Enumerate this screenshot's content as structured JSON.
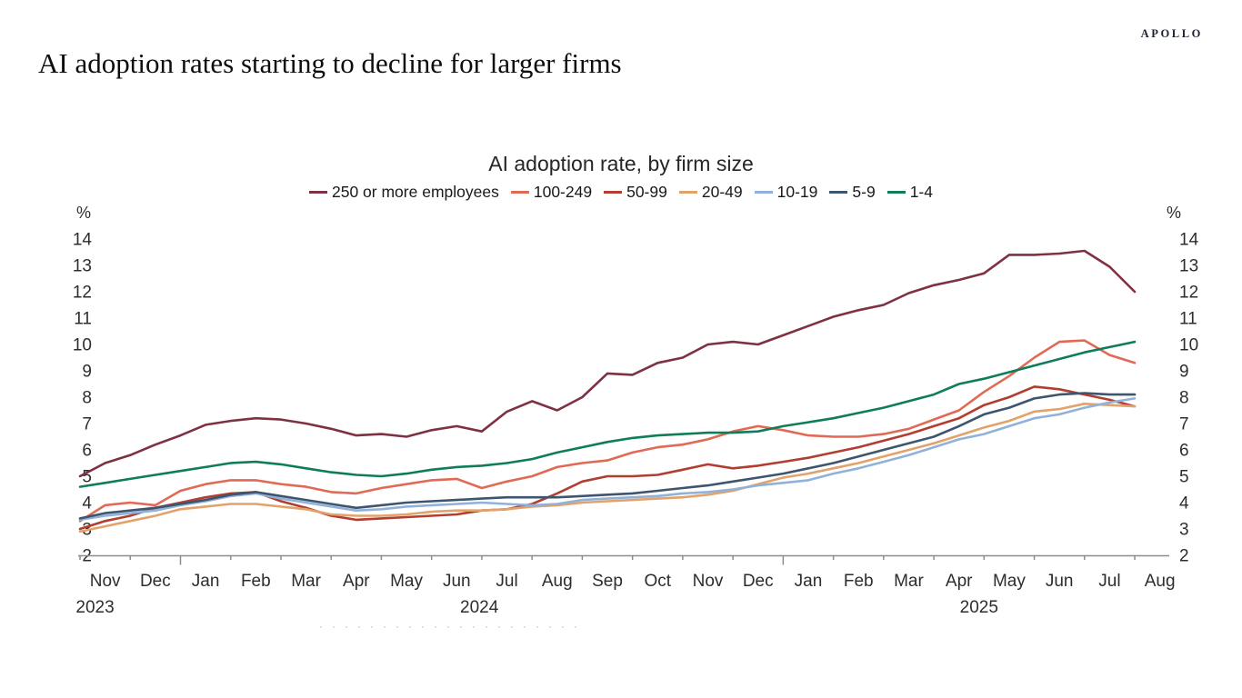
{
  "page": {
    "logo": "APOLLO",
    "title": "AI adoption rates starting to decline for larger firms"
  },
  "chart_data": {
    "type": "line",
    "title": "AI adoption rate, by firm size",
    "y_unit": "%",
    "ylim": [
      2,
      14
    ],
    "y_ticks": [
      2,
      3,
      4,
      5,
      6,
      7,
      8,
      9,
      10,
      11,
      12,
      13,
      14
    ],
    "grid": false,
    "legend_position": "top-center",
    "sampling": "biweekly survey periods, Nov 2023 - early Aug 2025",
    "x_axis": {
      "months": [
        "Nov",
        "Dec",
        "Jan",
        "Feb",
        "Mar",
        "Apr",
        "May",
        "Jun",
        "Jul",
        "Aug",
        "Sep",
        "Oct",
        "Nov",
        "Dec",
        "Jan",
        "Feb",
        "Mar",
        "Apr",
        "May",
        "Jun",
        "Jul",
        "Aug"
      ],
      "years": [
        {
          "label": "2023",
          "month_pos": -0.2
        },
        {
          "label": "2024",
          "month_pos": 7.45
        },
        {
          "label": "2025",
          "month_pos": 17.4
        }
      ]
    },
    "series": [
      {
        "name": "250 or more employees",
        "color": "#7e3142",
        "values": [
          5.0,
          5.5,
          5.8,
          6.2,
          6.55,
          6.95,
          7.1,
          7.2,
          7.15,
          7.0,
          6.8,
          6.55,
          6.6,
          6.5,
          6.75,
          6.9,
          6.7,
          7.45,
          7.85,
          7.5,
          8.0,
          8.9,
          8.85,
          9.3,
          9.5,
          10.0,
          10.1,
          10.0,
          10.35,
          10.7,
          11.05,
          11.3,
          11.5,
          11.95,
          12.25,
          12.45,
          12.7,
          13.4,
          13.4,
          13.45,
          13.55,
          12.95,
          12.0
        ]
      },
      {
        "name": "100-249",
        "color": "#e06a55",
        "values": [
          3.3,
          3.9,
          4.0,
          3.9,
          4.45,
          4.7,
          4.85,
          4.85,
          4.7,
          4.6,
          4.4,
          4.35,
          4.55,
          4.7,
          4.85,
          4.9,
          4.55,
          4.8,
          5.0,
          5.35,
          5.5,
          5.6,
          5.9,
          6.1,
          6.2,
          6.4,
          6.7,
          6.9,
          6.75,
          6.55,
          6.5,
          6.5,
          6.6,
          6.8,
          7.15,
          7.5,
          8.2,
          8.8,
          9.5,
          10.1,
          10.15,
          9.6,
          9.3
        ]
      },
      {
        "name": "50-99",
        "color": "#b23d31",
        "values": [
          3.0,
          3.3,
          3.5,
          3.8,
          4.0,
          4.2,
          4.35,
          4.4,
          4.05,
          3.8,
          3.5,
          3.35,
          3.4,
          3.45,
          3.5,
          3.55,
          3.7,
          3.75,
          3.95,
          4.35,
          4.8,
          5.0,
          5.0,
          5.05,
          5.25,
          5.45,
          5.3,
          5.4,
          5.55,
          5.7,
          5.9,
          6.1,
          6.35,
          6.6,
          6.9,
          7.2,
          7.7,
          8.0,
          8.4,
          8.3,
          8.1,
          7.9,
          7.65
        ]
      },
      {
        "name": "20-49",
        "color": "#e3a269",
        "values": [
          2.9,
          3.1,
          3.3,
          3.5,
          3.75,
          3.85,
          3.95,
          3.95,
          3.85,
          3.75,
          3.55,
          3.5,
          3.5,
          3.55,
          3.65,
          3.7,
          3.7,
          3.75,
          3.85,
          3.9,
          4.0,
          4.05,
          4.1,
          4.15,
          4.2,
          4.3,
          4.45,
          4.7,
          4.95,
          5.1,
          5.3,
          5.5,
          5.75,
          6.0,
          6.25,
          6.55,
          6.85,
          7.1,
          7.45,
          7.55,
          7.75,
          7.7,
          7.65
        ]
      },
      {
        "name": "10-19",
        "color": "#90b2d9",
        "values": [
          3.35,
          3.5,
          3.6,
          3.7,
          3.9,
          4.05,
          4.25,
          4.35,
          4.15,
          4.0,
          3.85,
          3.7,
          3.75,
          3.85,
          3.9,
          3.95,
          4.0,
          3.95,
          3.9,
          3.95,
          4.1,
          4.15,
          4.2,
          4.25,
          4.35,
          4.4,
          4.5,
          4.65,
          4.75,
          4.85,
          5.1,
          5.3,
          5.55,
          5.8,
          6.1,
          6.4,
          6.6,
          6.9,
          7.2,
          7.35,
          7.6,
          7.8,
          7.95
        ]
      },
      {
        "name": "5-9",
        "color": "#3e556f",
        "values": [
          3.4,
          3.6,
          3.7,
          3.8,
          3.95,
          4.1,
          4.3,
          4.4,
          4.25,
          4.1,
          3.95,
          3.8,
          3.9,
          4.0,
          4.05,
          4.1,
          4.15,
          4.2,
          4.2,
          4.2,
          4.25,
          4.3,
          4.35,
          4.45,
          4.55,
          4.65,
          4.8,
          4.95,
          5.1,
          5.3,
          5.5,
          5.75,
          6.0,
          6.25,
          6.5,
          6.9,
          7.35,
          7.6,
          7.95,
          8.1,
          8.15,
          8.1,
          8.1
        ]
      },
      {
        "name": "1-4",
        "color": "#0f7d5a",
        "values": [
          4.6,
          4.75,
          4.9,
          5.05,
          5.2,
          5.35,
          5.5,
          5.55,
          5.45,
          5.3,
          5.15,
          5.05,
          5.0,
          5.1,
          5.25,
          5.35,
          5.4,
          5.5,
          5.65,
          5.9,
          6.1,
          6.3,
          6.45,
          6.55,
          6.6,
          6.65,
          6.65,
          6.7,
          6.9,
          7.05,
          7.2,
          7.4,
          7.6,
          7.85,
          8.1,
          8.5,
          8.7,
          8.95,
          9.2,
          9.45,
          9.7,
          9.9,
          10.1
        ]
      }
    ]
  }
}
